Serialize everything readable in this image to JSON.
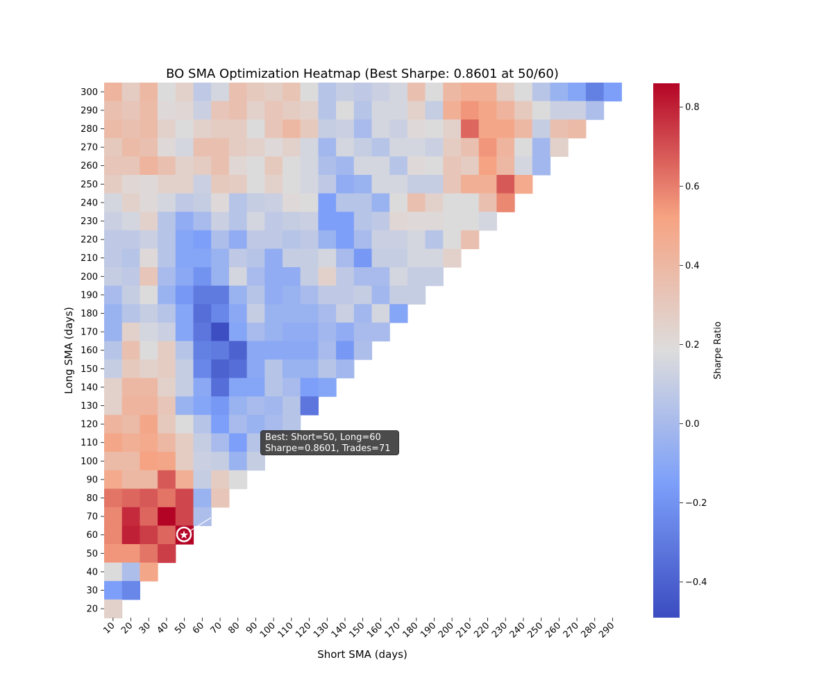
{
  "chart_data": {
    "type": "heatmap",
    "title": "BO SMA Optimization Heatmap (Best Sharpe: 0.8601 at 50/60)",
    "xlabel": "Short SMA (days)",
    "ylabel": "Long SMA (days)",
    "colorbar_label": "Sharpe Ratio",
    "colormap": "coolwarm",
    "vmin": -0.49,
    "vmax": 0.86,
    "colorbar_ticks": [
      "0.8",
      "0.6",
      "0.4",
      "0.2",
      "0.0",
      "−0.2",
      "−0.4"
    ],
    "colorbar_tick_values": [
      0.8,
      0.6,
      0.4,
      0.2,
      0.0,
      -0.2,
      -0.4
    ],
    "x_ticks": [
      10,
      20,
      30,
      40,
      50,
      60,
      70,
      80,
      90,
      100,
      110,
      120,
      130,
      140,
      150,
      160,
      170,
      180,
      190,
      200,
      210,
      220,
      230,
      240,
      250,
      260,
      270,
      280,
      290
    ],
    "y_ticks": [
      300,
      290,
      280,
      270,
      260,
      250,
      240,
      230,
      220,
      210,
      200,
      190,
      180,
      170,
      160,
      150,
      140,
      130,
      120,
      110,
      100,
      90,
      80,
      70,
      60,
      50,
      40,
      30,
      20
    ],
    "values_note_rows_top_to_bottom_long_300_to_20_cols_short_10_upward": true,
    "values": [
      [
        0.42,
        0.28,
        0.4,
        0.18,
        0.25,
        0.08,
        0.15,
        0.35,
        0.3,
        0.27,
        0.33,
        0.18,
        0.05,
        0.1,
        0.08,
        0.12,
        0.15,
        0.35,
        0.18,
        0.4,
        0.45,
        0.45,
        0.28,
        0.18,
        0.06,
        -0.05,
        -0.12,
        -0.28,
        -0.15
      ],
      [
        0.35,
        0.32,
        0.38,
        0.2,
        0.22,
        0.12,
        0.32,
        0.35,
        0.25,
        0.32,
        0.28,
        0.25,
        0.05,
        0.18,
        0.05,
        0.15,
        0.15,
        0.25,
        0.1,
        0.45,
        0.55,
        0.5,
        0.42,
        0.3,
        0.18,
        0.12,
        0.12,
        0.02
      ],
      [
        0.38,
        0.35,
        0.38,
        0.25,
        0.18,
        0.25,
        0.28,
        0.28,
        0.18,
        0.32,
        0.4,
        0.3,
        0.1,
        0.12,
        0.0,
        0.15,
        0.12,
        0.2,
        0.18,
        0.25,
        0.65,
        0.5,
        0.5,
        0.4,
        0.1,
        0.35,
        0.38
      ],
      [
        0.3,
        0.38,
        0.35,
        0.2,
        0.15,
        0.35,
        0.35,
        0.28,
        0.25,
        0.2,
        0.25,
        0.15,
        -0.02,
        0.15,
        0.1,
        0.05,
        0.15,
        0.15,
        0.12,
        0.28,
        0.35,
        0.55,
        0.42,
        0.18,
        -0.02,
        0.25
      ],
      [
        0.32,
        0.32,
        0.42,
        0.35,
        0.25,
        0.28,
        0.35,
        0.22,
        0.18,
        0.3,
        0.18,
        0.15,
        0.02,
        -0.02,
        0.15,
        0.15,
        0.05,
        0.2,
        0.18,
        0.32,
        0.28,
        0.52,
        0.4,
        0.15,
        -0.02
      ],
      [
        0.28,
        0.22,
        0.2,
        0.25,
        0.25,
        0.12,
        0.3,
        0.28,
        0.18,
        0.25,
        0.18,
        0.15,
        0.08,
        -0.08,
        -0.05,
        0.15,
        0.15,
        0.1,
        0.1,
        0.32,
        0.45,
        0.45,
        0.68,
        0.48
      ],
      [
        0.15,
        0.25,
        0.2,
        0.15,
        0.08,
        0.1,
        0.2,
        0.05,
        0.1,
        0.12,
        0.2,
        0.18,
        -0.15,
        0.05,
        0.05,
        -0.05,
        0.18,
        0.35,
        0.25,
        0.18,
        0.18,
        0.35,
        0.58
      ],
      [
        0.12,
        0.15,
        0.25,
        0.05,
        -0.08,
        0.0,
        0.12,
        0.05,
        0.15,
        0.08,
        0.1,
        0.12,
        -0.15,
        -0.15,
        0.05,
        0.08,
        0.22,
        0.2,
        0.2,
        0.18,
        0.18,
        0.15
      ],
      [
        0.08,
        0.08,
        0.12,
        0.05,
        -0.12,
        -0.15,
        0.02,
        -0.08,
        0.08,
        0.08,
        0.05,
        0.08,
        -0.05,
        -0.15,
        0.0,
        0.12,
        0.12,
        0.15,
        0.05,
        0.18,
        0.35
      ],
      [
        0.08,
        0.05,
        0.2,
        0.05,
        -0.12,
        -0.12,
        -0.05,
        0.08,
        0.05,
        -0.08,
        0.1,
        0.1,
        0.15,
        0.0,
        -0.18,
        0.1,
        0.1,
        0.15,
        0.15,
        0.25
      ],
      [
        0.1,
        0.08,
        0.32,
        0.0,
        -0.1,
        -0.2,
        -0.05,
        0.15,
        0.0,
        -0.08,
        -0.08,
        0.1,
        0.25,
        0.08,
        0.0,
        0.0,
        0.15,
        0.1,
        0.1
      ],
      [
        0.0,
        0.1,
        0.18,
        -0.05,
        -0.18,
        -0.3,
        -0.3,
        -0.05,
        0.05,
        -0.08,
        -0.05,
        0.0,
        0.08,
        0.08,
        0.1,
        -0.02,
        0.1,
        0.1
      ],
      [
        -0.05,
        0.05,
        0.1,
        0.05,
        -0.12,
        -0.35,
        -0.25,
        -0.1,
        0.1,
        -0.05,
        -0.05,
        -0.05,
        0.0,
        0.12,
        -0.02,
        0.15,
        -0.12
      ],
      [
        -0.05,
        0.25,
        0.15,
        0.12,
        -0.12,
        -0.32,
        -0.48,
        -0.12,
        0.0,
        -0.05,
        -0.08,
        -0.08,
        -0.02,
        -0.08,
        0.0,
        0.0
      ],
      [
        0.05,
        0.35,
        0.18,
        0.28,
        0.05,
        -0.28,
        -0.3,
        -0.4,
        -0.1,
        -0.1,
        -0.1,
        -0.1,
        0.0,
        -0.18,
        0.02
      ],
      [
        0.1,
        0.3,
        0.25,
        0.28,
        0.1,
        -0.25,
        -0.4,
        -0.35,
        -0.1,
        0.05,
        -0.05,
        -0.05,
        0.05,
        -0.02
      ],
      [
        0.25,
        0.4,
        0.4,
        0.25,
        0.1,
        -0.1,
        -0.35,
        -0.12,
        -0.12,
        0.05,
        0.0,
        -0.15,
        -0.12
      ],
      [
        0.25,
        0.42,
        0.42,
        0.32,
        -0.05,
        -0.12,
        -0.18,
        -0.05,
        0.0,
        -0.02,
        0.05,
        -0.32
      ],
      [
        0.42,
        0.38,
        0.5,
        0.3,
        0.18,
        0.05,
        -0.15,
        0.0,
        -0.05,
        0.0,
        0.05
      ],
      [
        0.5,
        0.45,
        0.48,
        0.4,
        0.28,
        0.1,
        0.0,
        -0.15,
        0.05
      ],
      [
        0.38,
        0.38,
        0.52,
        0.5,
        0.28,
        0.12,
        0.1,
        -0.05,
        0.1
      ],
      [
        0.48,
        0.4,
        0.4,
        0.68,
        0.45,
        0.1,
        0.28,
        0.18
      ],
      [
        0.62,
        0.65,
        0.68,
        0.62,
        0.72,
        -0.05,
        0.32
      ],
      [
        0.58,
        0.78,
        0.65,
        0.86,
        0.72,
        0.02
      ],
      [
        0.58,
        0.8,
        0.74,
        0.65,
        0.86
      ],
      [
        0.55,
        0.55,
        0.62,
        0.74
      ],
      [
        0.18,
        0.02,
        0.5
      ],
      [
        -0.15,
        -0.25
      ],
      [
        0.25
      ]
    ],
    "best": {
      "short": 50,
      "long": 60,
      "sharpe": 0.8601,
      "trades": 71
    }
  },
  "annotation": {
    "line1": "Best: Short=50, Long=60",
    "line2": "Sharpe=0.8601, Trades=71"
  }
}
